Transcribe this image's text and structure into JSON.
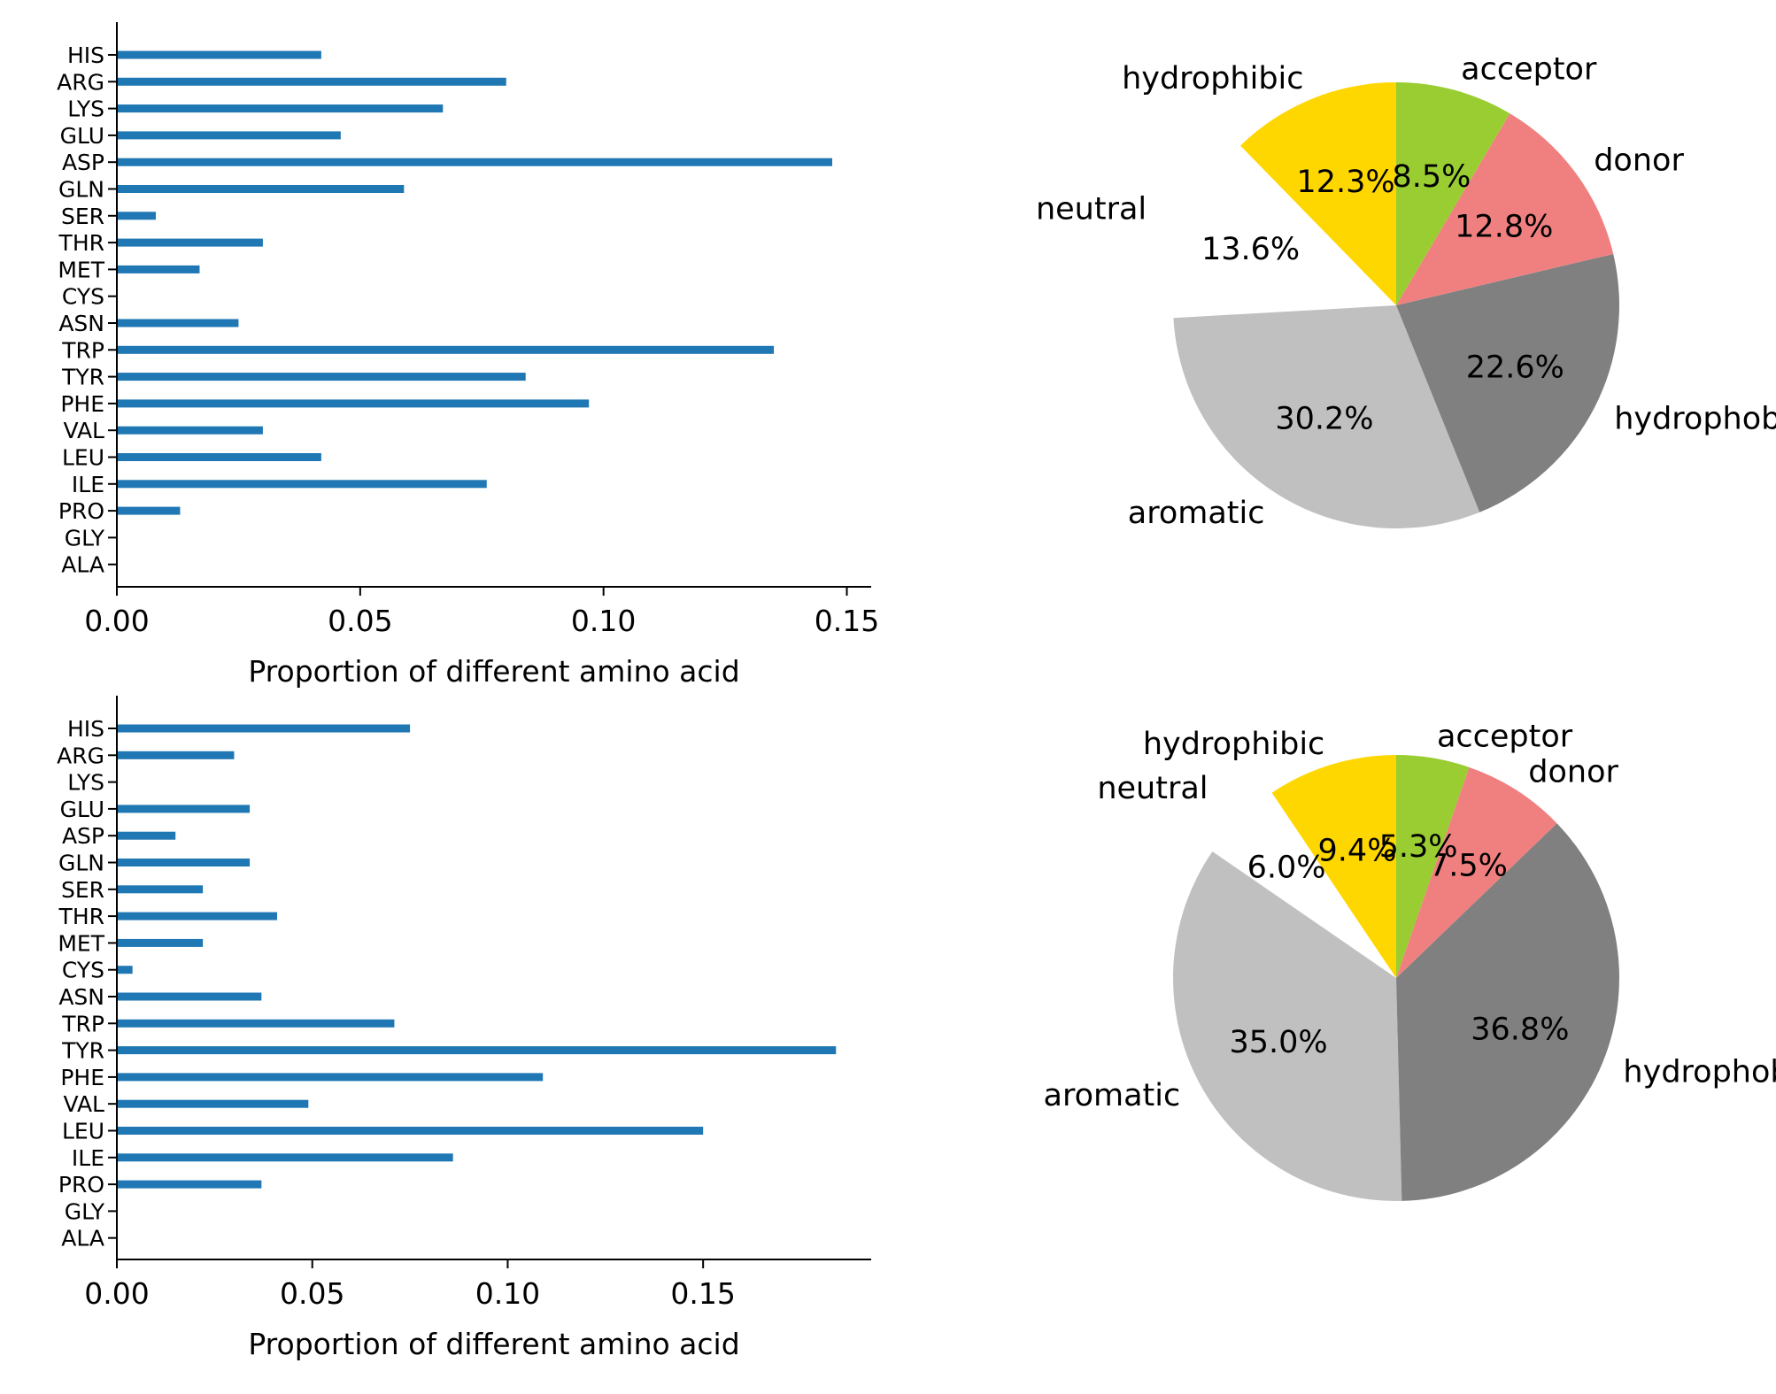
{
  "chart_data": [
    {
      "type": "bar",
      "orientation": "horizontal",
      "categories": [
        "HIS",
        "ARG",
        "LYS",
        "GLU",
        "ASP",
        "GLN",
        "SER",
        "THR",
        "MET",
        "CYS",
        "ASN",
        "TRP",
        "TYR",
        "PHE",
        "VAL",
        "LEU",
        "ILE",
        "PRO",
        "GLY",
        "ALA"
      ],
      "values": [
        0.042,
        0.08,
        0.067,
        0.046,
        0.147,
        0.059,
        0.008,
        0.03,
        0.017,
        0.0,
        0.025,
        0.135,
        0.084,
        0.097,
        0.03,
        0.042,
        0.076,
        0.013,
        0.0,
        0.0
      ],
      "xlabel": "Proportion of different amino acid",
      "ylabel": "",
      "xlim": [
        0,
        0.155
      ],
      "xticks": [
        "0.00",
        "0.05",
        "0.10",
        "0.15"
      ],
      "xtick_values": [
        0,
        0.05,
        0.1,
        0.15
      ],
      "color": "#1f77b4"
    },
    {
      "type": "pie",
      "slices": [
        {
          "label": "hydrophibic",
          "value": 12.3,
          "pct_label": "12.3%",
          "color": "#ffd700"
        },
        {
          "label": "neutral",
          "value": 13.6,
          "pct_label": "13.6%",
          "color": "#ffffff"
        },
        {
          "label": "aromatic",
          "value": 30.2,
          "pct_label": "30.2%",
          "color": "#c0c0c0"
        },
        {
          "label": "hydrophobic",
          "value": 22.6,
          "pct_label": "22.6%",
          "color": "#808080"
        },
        {
          "label": "donor",
          "value": 12.8,
          "pct_label": "12.8%",
          "color": "#f08080"
        },
        {
          "label": "acceptor",
          "value": 8.5,
          "pct_label": "8.5%",
          "color": "#9acd32"
        }
      ]
    },
    {
      "type": "bar",
      "orientation": "horizontal",
      "categories": [
        "HIS",
        "ARG",
        "LYS",
        "GLU",
        "ASP",
        "GLN",
        "SER",
        "THR",
        "MET",
        "CYS",
        "ASN",
        "TRP",
        "TYR",
        "PHE",
        "VAL",
        "LEU",
        "ILE",
        "PRO",
        "GLY",
        "ALA"
      ],
      "values": [
        0.075,
        0.03,
        0.0,
        0.034,
        0.015,
        0.034,
        0.022,
        0.041,
        0.022,
        0.004,
        0.037,
        0.071,
        0.184,
        0.109,
        0.049,
        0.15,
        0.086,
        0.037,
        0.0,
        0.0
      ],
      "xlabel": "Proportion of different amino acid",
      "ylabel": "",
      "xlim": [
        0,
        0.193
      ],
      "xticks": [
        "0.00",
        "0.05",
        "0.10",
        "0.15"
      ],
      "xtick_values": [
        0,
        0.05,
        0.1,
        0.15
      ],
      "color": "#1f77b4"
    },
    {
      "type": "pie",
      "slices": [
        {
          "label": "hydrophibic",
          "value": 9.4,
          "pct_label": "9.4%",
          "color": "#ffd700"
        },
        {
          "label": "neutral",
          "value": 6.0,
          "pct_label": "6.0%",
          "color": "#ffffff"
        },
        {
          "label": "aromatic",
          "value": 35.0,
          "pct_label": "35.0%",
          "color": "#c0c0c0"
        },
        {
          "label": "hydrophobic",
          "value": 36.8,
          "pct_label": "36.8%",
          "color": "#808080"
        },
        {
          "label": "donor",
          "value": 7.5,
          "pct_label": "7.5%",
          "color": "#f08080"
        },
        {
          "label": "acceptor",
          "value": 5.3,
          "pct_label": "5.3%",
          "color": "#9acd32"
        }
      ]
    }
  ]
}
